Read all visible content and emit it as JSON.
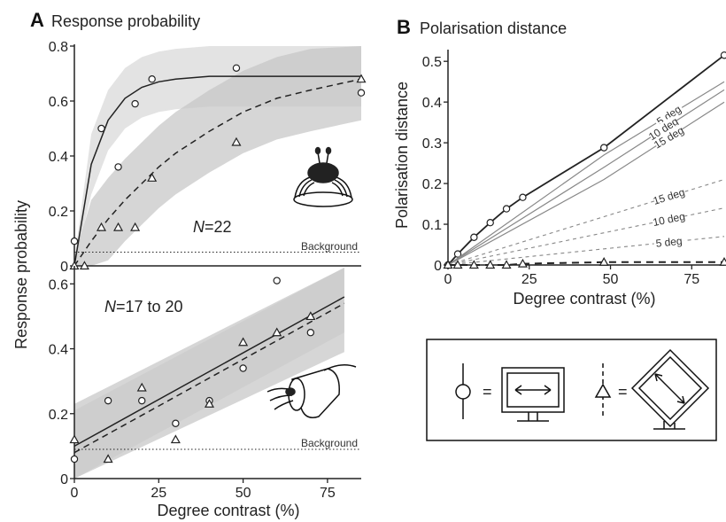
{
  "panels": {
    "A": {
      "letter": "A",
      "title": "Response probability"
    },
    "B": {
      "letter": "B",
      "title": "Polarisation distance"
    }
  },
  "labels": {
    "a_ylabel": "Response probability",
    "a_xlabel": "Degree contrast (%)",
    "b_ylabel": "Polarisation distance",
    "b_xlabel": "Degree contrast (%)",
    "top_n_italic": "N",
    "top_n_rest": "=22",
    "bottom_n_italic": "N",
    "bottom_n_rest": "=17 to 20",
    "background": "Background",
    "equals": "="
  },
  "chart_data": [
    {
      "id": "A-top",
      "type": "scatter",
      "xlim": [
        0,
        85
      ],
      "ylim": [
        0,
        0.8
      ],
      "yticks": [
        "0",
        "0.2",
        "0.4",
        "0.6",
        "0.8"
      ],
      "background_level": 0.05,
      "series": [
        {
          "marker": "circle",
          "x": [
            0,
            8,
            13,
            18,
            23,
            48,
            85
          ],
          "y": [
            0.09,
            0.5,
            0.36,
            0.59,
            0.68,
            0.72,
            0.63
          ]
        },
        {
          "marker": "triangle",
          "x": [
            0,
            3,
            8,
            13,
            18,
            23,
            48,
            85
          ],
          "y": [
            0.0,
            0.0,
            0.14,
            0.14,
            0.14,
            0.32,
            0.45,
            0.68
          ]
        }
      ],
      "fits": [
        {
          "style": "solid",
          "x": [
            0,
            5,
            10,
            15,
            20,
            25,
            30,
            40,
            50,
            60,
            70,
            85
          ],
          "y": [
            0.0,
            0.37,
            0.53,
            0.61,
            0.65,
            0.67,
            0.68,
            0.69,
            0.69,
            0.69,
            0.69,
            0.69
          ]
        },
        {
          "style": "dashed",
          "x": [
            0,
            5,
            10,
            15,
            20,
            25,
            30,
            40,
            50,
            60,
            70,
            85
          ],
          "y": [
            0.0,
            0.09,
            0.17,
            0.24,
            0.3,
            0.36,
            0.41,
            0.49,
            0.56,
            0.61,
            0.64,
            0.68
          ]
        }
      ]
    },
    {
      "id": "A-bottom",
      "type": "scatter",
      "xlim": [
        0,
        85
      ],
      "ylim": [
        0,
        0.65
      ],
      "yticks": [
        "0",
        "0.2",
        "0.4",
        "0.6"
      ],
      "xticks": [
        "0",
        "25",
        "50",
        "75"
      ],
      "background_level": 0.09,
      "series": [
        {
          "marker": "circle",
          "x": [
            0,
            10,
            20,
            30,
            40,
            50,
            60,
            70
          ],
          "y": [
            0.06,
            0.24,
            0.24,
            0.17,
            0.24,
            0.34,
            0.61,
            0.45
          ]
        },
        {
          "marker": "triangle",
          "x": [
            0,
            10,
            20,
            30,
            40,
            50,
            60,
            70
          ],
          "y": [
            0.12,
            0.06,
            0.28,
            0.12,
            0.23,
            0.42,
            0.45,
            0.5
          ]
        }
      ],
      "fits": [
        {
          "style": "solid",
          "x": [
            0,
            80
          ],
          "y": [
            0.1,
            0.56
          ]
        },
        {
          "style": "dashed",
          "x": [
            0,
            80
          ],
          "y": [
            0.08,
            0.54
          ]
        }
      ]
    },
    {
      "id": "B",
      "type": "line",
      "xlim": [
        0,
        85
      ],
      "ylim": [
        0,
        0.52
      ],
      "xticks": [
        "0",
        "25",
        "50",
        "75"
      ],
      "yticks": [
        "0",
        "0.1",
        "0.2",
        "0.3",
        "0.4",
        "0.5"
      ],
      "series": [
        {
          "name": "",
          "marker": "circle",
          "style": "solid-bold",
          "x": [
            0,
            3,
            8,
            13,
            18,
            23,
            48,
            85
          ],
          "y": [
            0.0,
            0.027,
            0.068,
            0.104,
            0.138,
            0.166,
            0.288,
            0.515
          ]
        },
        {
          "name": "5 deg",
          "style": "solid-thin",
          "x": [
            0,
            48,
            85
          ],
          "y": [
            0.0,
            0.27,
            0.45
          ]
        },
        {
          "name": "10 deg",
          "style": "solid-thin",
          "x": [
            0,
            48,
            85
          ],
          "y": [
            0.0,
            0.24,
            0.43
          ]
        },
        {
          "name": "15 deg",
          "style": "solid-thin",
          "x": [
            0,
            48,
            85
          ],
          "y": [
            0.0,
            0.21,
            0.4
          ]
        },
        {
          "name": "15 deg",
          "style": "dashed-thin",
          "x": [
            0,
            85
          ],
          "y": [
            0.0,
            0.21
          ]
        },
        {
          "name": "10 deg",
          "style": "dashed-thin",
          "x": [
            0,
            85
          ],
          "y": [
            0.0,
            0.14
          ]
        },
        {
          "name": "5 deg",
          "style": "dashed-thin",
          "x": [
            0,
            85
          ],
          "y": [
            0.0,
            0.07
          ]
        },
        {
          "name": "",
          "marker": "triangle",
          "style": "dashed-bold",
          "x": [
            0,
            3,
            8,
            13,
            18,
            23,
            48,
            85
          ],
          "y": [
            0.0,
            0.0,
            0.0,
            0.0,
            0.0,
            0.003,
            0.007,
            0.007
          ]
        }
      ]
    }
  ]
}
